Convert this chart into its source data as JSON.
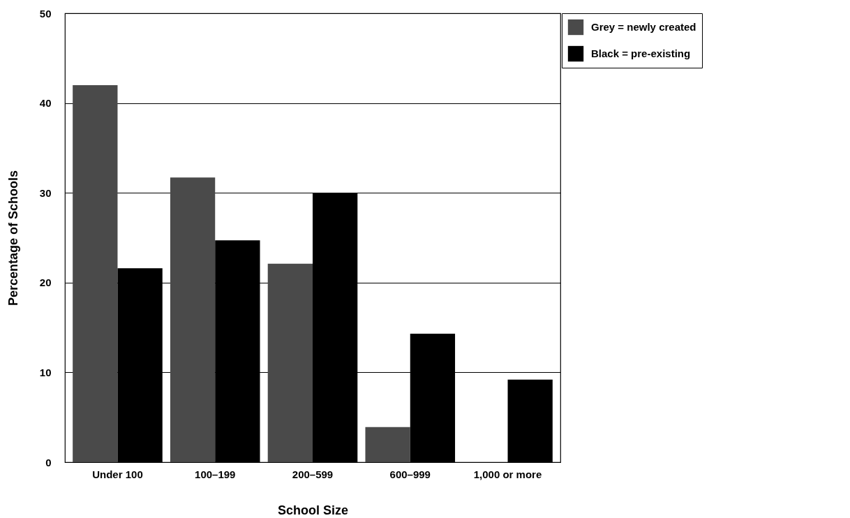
{
  "chart_data": {
    "type": "bar",
    "xlabel": "School Size",
    "ylabel": "Percentage of Schools",
    "categories": [
      "Under 100",
      "100–199",
      "200–599",
      "600–999",
      "1,000 or more"
    ],
    "series": [
      {
        "name": "Grey = newly created",
        "color": "#4a4a4a",
        "values": [
          42,
          31.7,
          22.1,
          3.9,
          null
        ]
      },
      {
        "name": "Black = pre-existing",
        "color": "#000000",
        "values": [
          21.6,
          24.7,
          30,
          14.3,
          9.2
        ]
      }
    ],
    "ylim": [
      0,
      50
    ],
    "yticks": [
      0,
      10,
      20,
      30,
      40,
      50
    ],
    "grid": "y",
    "legend": "top right"
  }
}
